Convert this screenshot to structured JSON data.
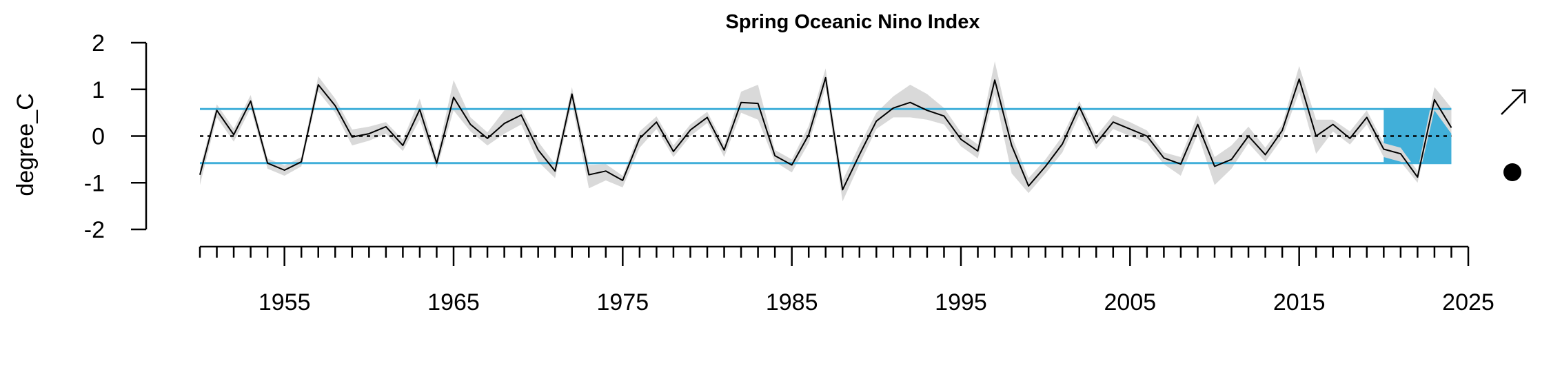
{
  "chart_data": {
    "type": "line",
    "title": "Spring Oceanic Nino Index",
    "xlabel": "",
    "ylabel": "degree_C",
    "xlim": [
      1950,
      2025
    ],
    "ylim": [
      -2,
      2
    ],
    "x_ticks": [
      1955,
      1965,
      1975,
      1985,
      1995,
      2005,
      2015,
      2025
    ],
    "y_ticks": [
      2,
      1,
      0,
      -1,
      -2
    ],
    "y_tick_labels": [
      "2",
      "1",
      "0",
      "-1",
      "-2"
    ],
    "mean": 0.0,
    "upper_sd": 0.58,
    "lower_sd": -0.58,
    "highlight_years": [
      2020,
      2024
    ],
    "trend_symbol": "up-right-arrow",
    "status_symbol": "filled-circle",
    "colors": {
      "series": "#000000",
      "sd_lines": "#41afd9",
      "highlight": "#41afd9",
      "uncertainty": "#d9d9d9",
      "mean_line": "#000000"
    },
    "series": [
      {
        "x": [
          1950,
          1951,
          1952,
          1953,
          1954,
          1955,
          1956,
          1957,
          1958,
          1959,
          1960,
          1961,
          1962,
          1963,
          1964,
          1965,
          1966,
          1967,
          1968,
          1969,
          1970,
          1971,
          1972,
          1973,
          1974,
          1975,
          1976,
          1977,
          1978,
          1979,
          1980,
          1981,
          1982,
          1983,
          1984,
          1985,
          1986,
          1987,
          1988,
          1989,
          1990,
          1991,
          1992,
          1993,
          1994,
          1995,
          1996,
          1997,
          1998,
          1999,
          2000,
          2001,
          2002,
          2003,
          2004,
          2005,
          2006,
          2007,
          2008,
          2009,
          2010,
          2011,
          2012,
          2013,
          2014,
          2015,
          2016,
          2017,
          2018,
          2019,
          2020,
          2021,
          2022,
          2023,
          2024
        ],
        "values": [
          -0.83,
          0.55,
          0.03,
          0.75,
          -0.58,
          -0.73,
          -0.55,
          1.1,
          0.65,
          -0.02,
          0.05,
          0.2,
          -0.2,
          0.57,
          -0.58,
          0.83,
          0.25,
          -0.05,
          0.27,
          0.45,
          -0.3,
          -0.75,
          0.9,
          -0.83,
          -0.75,
          -0.95,
          -0.05,
          0.3,
          -0.33,
          0.13,
          0.4,
          -0.3,
          0.72,
          0.7,
          -0.42,
          -0.62,
          0.03,
          1.25,
          -1.15,
          -0.4,
          0.32,
          0.6,
          0.72,
          0.55,
          0.43,
          -0.07,
          -0.32,
          1.2,
          -0.2,
          -1.07,
          -0.65,
          -0.17,
          0.63,
          -0.15,
          0.3,
          0.15,
          0.0,
          -0.47,
          -0.6,
          0.25,
          -0.65,
          -0.5,
          0.0,
          -0.4,
          0.12,
          1.22,
          0.0,
          0.25,
          -0.05,
          0.4,
          -0.28,
          -0.38,
          -0.88,
          0.78,
          0.18
        ],
        "band_upper": [
          -0.7,
          0.68,
          0.16,
          0.88,
          -0.48,
          -0.63,
          -0.45,
          1.28,
          0.8,
          0.14,
          0.2,
          0.3,
          -0.08,
          0.8,
          -0.45,
          1.2,
          0.4,
          0.08,
          0.55,
          0.58,
          -0.12,
          -0.6,
          1.05,
          -0.62,
          -0.6,
          -0.85,
          0.1,
          0.42,
          -0.2,
          0.25,
          0.52,
          -0.18,
          0.95,
          1.1,
          -0.3,
          -0.5,
          0.22,
          1.45,
          -0.95,
          -0.2,
          0.5,
          0.85,
          1.1,
          0.9,
          0.6,
          0.08,
          -0.18,
          1.6,
          0.0,
          -0.9,
          -0.5,
          0.0,
          0.75,
          0.0,
          0.45,
          0.3,
          0.12,
          -0.35,
          -0.45,
          0.45,
          -0.45,
          -0.2,
          0.2,
          -0.25,
          0.25,
          1.5,
          0.35,
          0.35,
          0.1,
          0.55,
          -0.15,
          -0.25,
          -0.75,
          1.05,
          0.6
        ],
        "band_lower": [
          -1.05,
          0.4,
          -0.12,
          0.6,
          -0.7,
          -0.85,
          -0.65,
          0.95,
          0.5,
          -0.2,
          -0.1,
          0.05,
          -0.32,
          0.35,
          -0.7,
          0.55,
          0.1,
          -0.2,
          0.05,
          0.25,
          -0.55,
          -0.9,
          0.7,
          -1.12,
          -0.95,
          -1.1,
          -0.25,
          0.15,
          -0.45,
          0.0,
          0.28,
          -0.45,
          0.5,
          0.35,
          -0.55,
          -0.78,
          -0.15,
          1.05,
          -1.4,
          -0.6,
          0.15,
          0.4,
          0.4,
          0.35,
          0.25,
          -0.22,
          -0.48,
          0.9,
          -0.8,
          -1.22,
          -0.8,
          -0.35,
          0.45,
          -0.28,
          0.15,
          0.0,
          -0.15,
          -0.6,
          -0.85,
          0.05,
          -1.05,
          -0.7,
          -0.15,
          -0.55,
          -0.05,
          0.95,
          -0.38,
          0.1,
          -0.18,
          0.25,
          -0.45,
          -0.55,
          -1.0,
          0.55,
          0.05
        ]
      }
    ]
  }
}
